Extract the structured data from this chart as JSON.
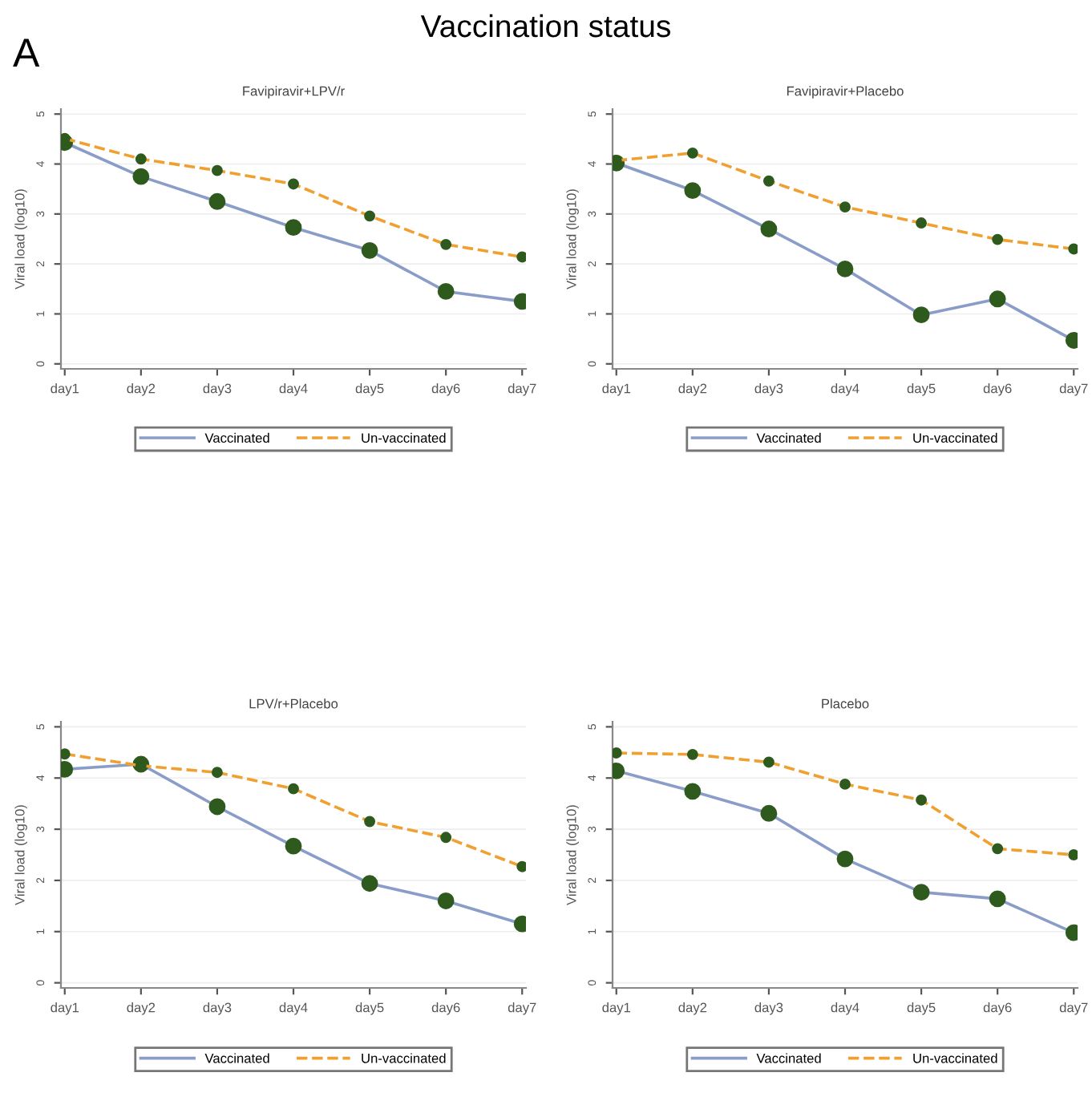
{
  "chart_data": [
    {
      "type": "line",
      "title": "Favipiravir+LPV/r",
      "ylabel": "Viral load (log10)",
      "annotations": [
        "A",
        "Vaccination status"
      ],
      "categories": [
        "day1",
        "day2",
        "day3",
        "day4",
        "day5",
        "day6",
        "day7"
      ],
      "ylim": [
        0,
        5
      ],
      "yticks": [
        0,
        1,
        2,
        3,
        4,
        5
      ],
      "grid": "y",
      "legend": "bottom",
      "marker": "circle",
      "series": [
        {
          "name": "Vaccinated",
          "color": "#8a9cc8",
          "line_style": "solid",
          "values": [
            4.43,
            3.75,
            3.25,
            2.73,
            2.27,
            1.45,
            1.25
          ]
        },
        {
          "name": "Un-vaccinated",
          "color": "#f0a030",
          "line_style": "dashed",
          "values": [
            4.51,
            4.1,
            3.87,
            3.6,
            2.96,
            2.39,
            2.14
          ]
        }
      ]
    },
    {
      "type": "line",
      "title": "Favipiravir+Placebo",
      "ylabel": "Viral load (log10)",
      "categories": [
        "day1",
        "day2",
        "day3",
        "day4",
        "day5",
        "day6",
        "day7"
      ],
      "ylim": [
        0,
        5
      ],
      "yticks": [
        0,
        1,
        2,
        3,
        4,
        5
      ],
      "grid": "y",
      "legend": "bottom",
      "marker": "circle",
      "series": [
        {
          "name": "Vaccinated",
          "color": "#8a9cc8",
          "line_style": "solid",
          "values": [
            4.02,
            3.47,
            2.7,
            1.9,
            0.98,
            1.3,
            0.47
          ]
        },
        {
          "name": "Un-vaccinated",
          "color": "#f0a030",
          "line_style": "dashed",
          "values": [
            4.07,
            4.22,
            3.66,
            3.14,
            2.82,
            2.49,
            2.3
          ]
        }
      ]
    },
    {
      "type": "line",
      "title": "LPV/r+Placebo",
      "ylabel": "Viral load (log10)",
      "categories": [
        "day1",
        "day2",
        "day3",
        "day4",
        "day5",
        "day6",
        "day7"
      ],
      "ylim": [
        0,
        5
      ],
      "yticks": [
        0,
        1,
        2,
        3,
        4,
        5
      ],
      "grid": "y",
      "legend": "bottom",
      "marker": "circle",
      "series": [
        {
          "name": "Vaccinated",
          "color": "#8a9cc8",
          "line_style": "solid",
          "values": [
            4.17,
            4.27,
            3.44,
            2.67,
            1.94,
            1.6,
            1.15
          ]
        },
        {
          "name": "Un-vaccinated",
          "color": "#f0a030",
          "line_style": "dashed",
          "values": [
            4.47,
            4.24,
            4.11,
            3.79,
            3.15,
            2.84,
            2.27
          ]
        }
      ]
    },
    {
      "type": "line",
      "title": "Placebo",
      "ylabel": "Viral load (log10)",
      "categories": [
        "day1",
        "day2",
        "day3",
        "day4",
        "day5",
        "day6",
        "day7"
      ],
      "ylim": [
        0,
        5
      ],
      "yticks": [
        0,
        1,
        2,
        3,
        4,
        5
      ],
      "grid": "y",
      "legend": "bottom",
      "marker": "circle",
      "series": [
        {
          "name": "Vaccinated",
          "color": "#8a9cc8",
          "line_style": "solid",
          "values": [
            4.14,
            3.74,
            3.31,
            2.42,
            1.77,
            1.64,
            0.98
          ]
        },
        {
          "name": "Un-vaccinated",
          "color": "#f0a030",
          "line_style": "dashed",
          "values": [
            4.49,
            4.46,
            4.31,
            3.88,
            3.57,
            2.62,
            2.5
          ]
        }
      ]
    }
  ]
}
